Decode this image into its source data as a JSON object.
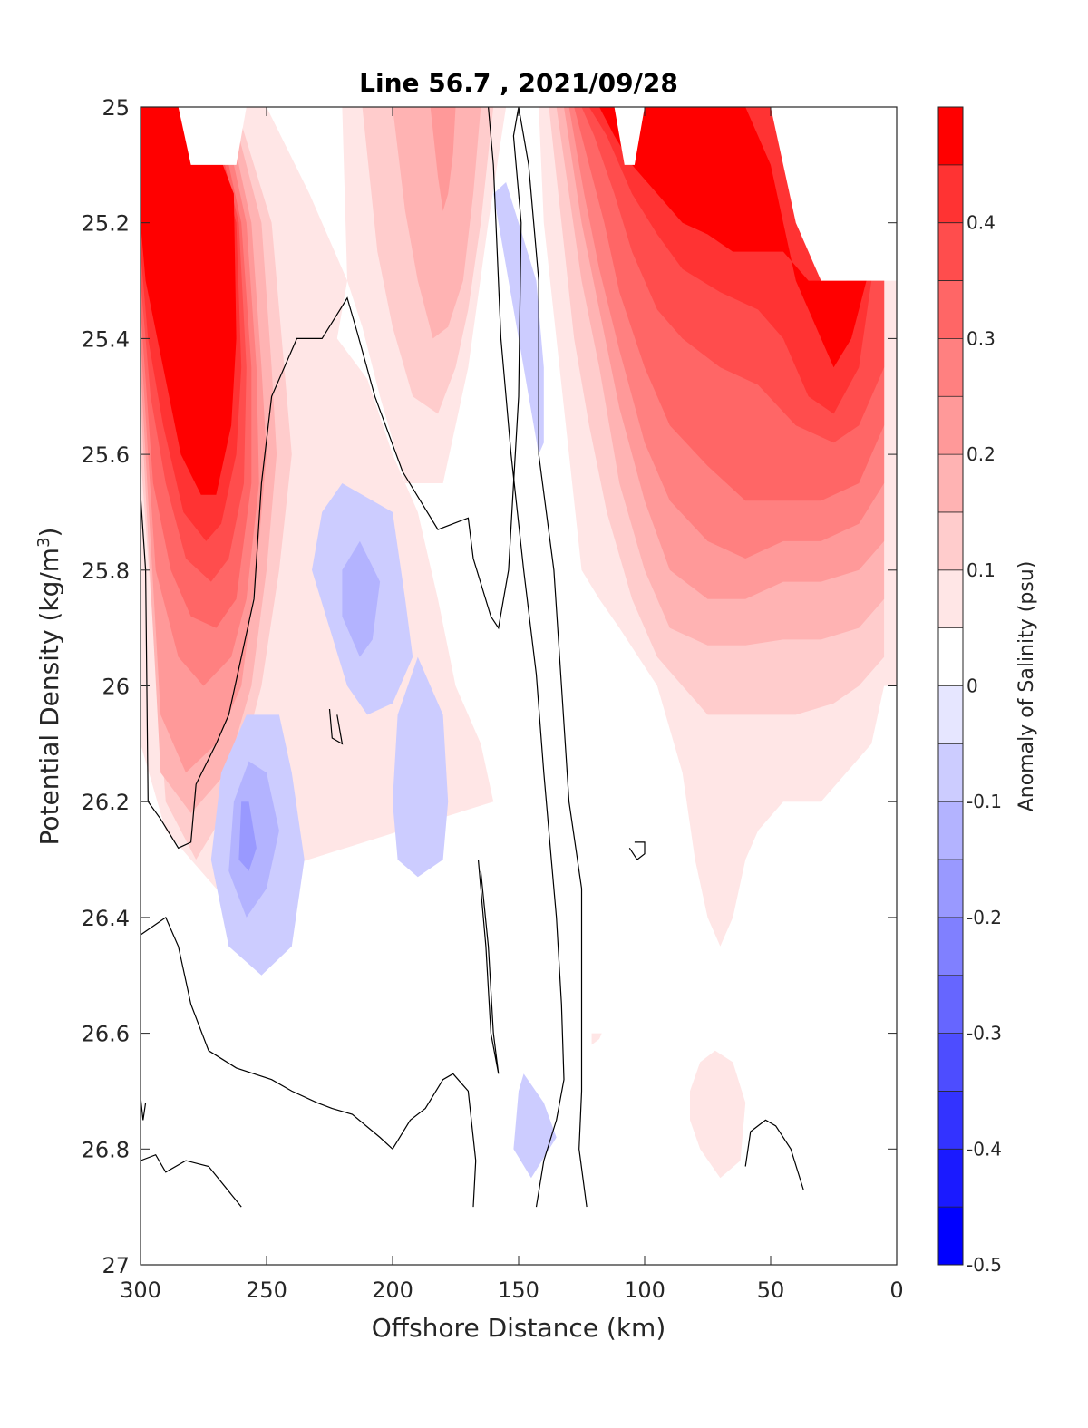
{
  "chart_data": {
    "type": "contour",
    "title": "Line 56.7 , 2021/09/28",
    "xlabel": "Offshore Distance (km)",
    "ylabel": "Potential Density (kg/m",
    "ylabel_sup": "3",
    "ylabel_end": ")",
    "xlim": [
      300,
      0
    ],
    "ylim": [
      25,
      27
    ],
    "x_reversed": true,
    "y_reversed": true,
    "x_ticks": [
      300,
      250,
      200,
      150,
      100,
      50,
      0
    ],
    "x_tick_labels": [
      "300",
      "250",
      "200",
      "150",
      "100",
      "50",
      "0"
    ],
    "y_ticks": [
      25,
      25.2,
      25.4,
      25.6,
      25.8,
      26,
      26.2,
      26.4,
      26.6,
      26.8,
      27
    ],
    "y_tick_labels": [
      "25",
      "25.2",
      "25.4",
      "25.6",
      "25.8",
      "26",
      "26.2",
      "26.4",
      "26.6",
      "26.8",
      "27"
    ],
    "colorbar": {
      "label": "Anomaly of Salinity (psu)",
      "range": [
        -0.5,
        0.5
      ],
      "levels": [
        -0.5,
        -0.45,
        -0.4,
        -0.35,
        -0.3,
        -0.25,
        -0.2,
        -0.15,
        -0.1,
        -0.05,
        0,
        0.05,
        0.1,
        0.15,
        0.2,
        0.25,
        0.3,
        0.35,
        0.4,
        0.45,
        0.5
      ],
      "ticks": [
        -0.5,
        -0.4,
        -0.3,
        -0.2,
        -0.1,
        0,
        0.1,
        0.2,
        0.3,
        0.4
      ],
      "tick_labels": [
        "-0.5",
        "-0.4",
        "-0.3",
        "-0.2",
        "-0.1",
        "0",
        "0.1",
        "0.2",
        "0.3",
        "0.4"
      ],
      "colors": [
        "#0000ff",
        "#1a1aff",
        "#3333ff",
        "#4d4dff",
        "#6666ff",
        "#8080ff",
        "#9999ff",
        "#b3b3ff",
        "#ccccff",
        "#e6e6ff",
        "#ffffff",
        "#ffe6e6",
        "#ffcccc",
        "#ffb3b3",
        "#ff9999",
        "#ff8080",
        "#ff6666",
        "#ff4d4d",
        "#ff3333",
        "#ff0000"
      ]
    },
    "zero_contour_color": "#000000",
    "anomaly_regions": [
      {
        "sign": "positive",
        "max": 0.5,
        "levels": [
          0.05,
          0.1,
          0.15,
          0.2,
          0.25,
          0.3,
          0.35,
          0.4,
          0.45
        ],
        "outline": [
          [
            300,
            25
          ],
          [
            285,
            25
          ],
          [
            282,
            25.1
          ],
          [
            275,
            25.1
          ],
          [
            262,
            25.1
          ],
          [
            258,
            25
          ],
          [
            238,
            25
          ],
          [
            235,
            25.2
          ],
          [
            230,
            25.3
          ],
          [
            210,
            25.37
          ],
          [
            200,
            25.33
          ],
          [
            195,
            25.3
          ],
          [
            190,
            25.25
          ],
          [
            200,
            25.6
          ],
          [
            185,
            25.85
          ],
          [
            175,
            26.03
          ],
          [
            165,
            26.1
          ],
          [
            150,
            26.2
          ],
          [
            135,
            26.3
          ],
          [
            120,
            26.35
          ],
          [
            105,
            26.45
          ],
          [
            85,
            26.6
          ],
          [
            75,
            26.75
          ],
          [
            73,
            26.8
          ],
          [
            70,
            26.9
          ],
          [
            65,
            26.95
          ],
          [
            62,
            26.95
          ],
          [
            58,
            26.88
          ],
          [
            55,
            26.78
          ],
          [
            40,
            26.95
          ],
          [
            35,
            26.95
          ],
          [
            30,
            26.85
          ],
          [
            28,
            26.8
          ],
          [
            290,
            26.8
          ]
        ],
        "zone": [
          [
            300,
            25,
            0.5
          ],
          [
            265,
            25.5,
            0.5
          ],
          [
            270,
            25.9,
            0.3
          ],
          [
            282,
            26.2,
            0.15
          ],
          [
            290,
            26.2,
            0.05
          ]
        ]
      },
      {
        "sign": "negative",
        "min": -0.15,
        "center": [
          257,
          26.25
        ]
      },
      {
        "sign": "negative",
        "min": -0.15,
        "center": [
          210,
          25.85
        ]
      }
    ]
  }
}
